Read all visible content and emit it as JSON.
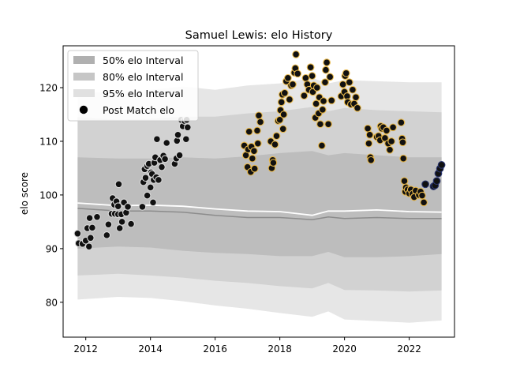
{
  "chart_data": {
    "type": "scatter",
    "title": "Samuel Lewis: elo History",
    "xlabel": "",
    "ylabel": "elo score",
    "xlim": [
      2011.3,
      2023.4
    ],
    "ylim": [
      73.5,
      127.8
    ],
    "xticks": [
      2012,
      2014,
      2016,
      2018,
      2020,
      2022
    ],
    "yticks": [
      80,
      90,
      100,
      110,
      120
    ],
    "grid": false,
    "legend_position": "top-left",
    "legend": [
      {
        "label": "50% elo Interval",
        "swatch": "band-50"
      },
      {
        "label": "80% elo Interval",
        "swatch": "band-80"
      },
      {
        "label": "95% elo Interval",
        "swatch": "band-95"
      },
      {
        "label": "Post Match elo",
        "swatch": "marker"
      }
    ],
    "colors": {
      "band_95": "#e6e6e6",
      "band_80": "#d2d2d2",
      "band_50": "#bdbdbd",
      "mean_line": "#ffffff",
      "median_line": "#8c8c8c",
      "point_fill": "#111111",
      "era_edges": [
        "#d9d9d9",
        "#e8b84a",
        "#2a3570"
      ]
    },
    "intervals": {
      "x": [
        2011.75,
        2013.0,
        2014.0,
        2015.0,
        2016.0,
        2017.0,
        2018.0,
        2019.0,
        2019.5,
        2020.0,
        2021.0,
        2022.0,
        2023.0
      ],
      "p95": [
        [
          80.5,
          119.0
        ],
        [
          81.0,
          119.2
        ],
        [
          80.8,
          119.6
        ],
        [
          80.2,
          120.2
        ],
        [
          79.4,
          119.6
        ],
        [
          78.8,
          120.4
        ],
        [
          78.0,
          120.8
        ],
        [
          77.3,
          121.8
        ],
        [
          78.3,
          120.8
        ],
        [
          76.8,
          121.4
        ],
        [
          76.5,
          121.2
        ],
        [
          76.2,
          121.0
        ],
        [
          76.6,
          121.0
        ]
      ],
      "p80": [
        [
          85.0,
          114.5
        ],
        [
          85.3,
          114.0
        ],
        [
          85.0,
          114.2
        ],
        [
          84.6,
          114.6
        ],
        [
          84.0,
          114.6
        ],
        [
          83.6,
          115.2
        ],
        [
          83.0,
          115.6
        ],
        [
          82.6,
          116.4
        ],
        [
          83.6,
          115.6
        ],
        [
          82.3,
          116.2
        ],
        [
          82.2,
          115.8
        ],
        [
          82.0,
          115.6
        ],
        [
          82.2,
          115.4
        ]
      ],
      "p50": [
        [
          90.0,
          107.0
        ],
        [
          90.4,
          106.8
        ],
        [
          90.2,
          106.8
        ],
        [
          89.6,
          107.0
        ],
        [
          89.2,
          106.8
        ],
        [
          89.0,
          107.2
        ],
        [
          88.6,
          107.8
        ],
        [
          88.6,
          108.2
        ],
        [
          89.4,
          107.4
        ],
        [
          88.4,
          107.8
        ],
        [
          88.4,
          107.4
        ],
        [
          88.6,
          107.0
        ],
        [
          89.0,
          107.0
        ]
      ],
      "mean": [
        98.5,
        98.0,
        98.1,
        97.9,
        97.4,
        97.0,
        96.9,
        96.2,
        97.0,
        97.0,
        97.2,
        96.9,
        96.8
      ],
      "median": [
        97.5,
        97.0,
        97.0,
        96.8,
        96.2,
        95.8,
        95.8,
        95.4,
        95.9,
        95.6,
        95.8,
        95.6,
        95.6
      ]
    },
    "series": [
      {
        "era": 0,
        "points": [
          [
            2011.75,
            92.8
          ],
          [
            2011.78,
            91.0
          ],
          [
            2011.9,
            90.9
          ],
          [
            2012.0,
            91.5
          ],
          [
            2012.05,
            93.8
          ],
          [
            2012.1,
            90.4
          ],
          [
            2012.12,
            95.7
          ],
          [
            2012.15,
            92.0
          ],
          [
            2012.2,
            93.9
          ],
          [
            2012.35,
            95.9
          ],
          [
            2012.65,
            92.5
          ],
          [
            2012.7,
            94.5
          ],
          [
            2012.8,
            96.5
          ],
          [
            2012.83,
            99.4
          ],
          [
            2012.88,
            98.2
          ],
          [
            2012.9,
            96.5
          ],
          [
            2012.95,
            98.8
          ],
          [
            2013.0,
            96.4
          ],
          [
            2013.0,
            97.9
          ],
          [
            2013.02,
            102.0
          ],
          [
            2013.05,
            93.8
          ],
          [
            2013.1,
            96.4
          ],
          [
            2013.12,
            95.0
          ],
          [
            2013.18,
            98.6
          ],
          [
            2013.25,
            96.7
          ],
          [
            2013.3,
            97.8
          ],
          [
            2013.4,
            94.6
          ],
          [
            2013.75,
            97.8
          ],
          [
            2013.78,
            102.4
          ],
          [
            2013.82,
            104.8
          ],
          [
            2013.85,
            103.2
          ],
          [
            2013.9,
            99.9
          ],
          [
            2013.9,
            105.4
          ],
          [
            2013.95,
            105.8
          ],
          [
            2014.0,
            101.4
          ],
          [
            2014.02,
            104.2
          ],
          [
            2014.05,
            103.9
          ],
          [
            2014.08,
            98.6
          ],
          [
            2014.1,
            102.8
          ],
          [
            2014.12,
            106.0
          ],
          [
            2014.15,
            107.0
          ],
          [
            2014.18,
            103.3
          ],
          [
            2014.2,
            110.4
          ],
          [
            2014.25,
            102.8
          ],
          [
            2014.3,
            106.5
          ],
          [
            2014.35,
            105.2
          ],
          [
            2014.4,
            107.3
          ],
          [
            2014.45,
            106.7
          ],
          [
            2014.5,
            109.7
          ],
          [
            2014.75,
            105.8
          ],
          [
            2014.8,
            106.8
          ],
          [
            2014.82,
            110.1
          ],
          [
            2014.85,
            111.2
          ],
          [
            2014.9,
            107.4
          ],
          [
            2014.95,
            114.0
          ],
          [
            2015.0,
            112.8
          ],
          [
            2015.05,
            113.8
          ],
          [
            2015.1,
            110.4
          ],
          [
            2015.12,
            114.0
          ],
          [
            2015.15,
            112.6
          ]
        ]
      },
      {
        "era": 1,
        "points": [
          [
            2016.9,
            109.2
          ],
          [
            2016.95,
            107.4
          ],
          [
            2017.0,
            105.2
          ],
          [
            2017.02,
            108.5
          ],
          [
            2017.05,
            111.8
          ],
          [
            2017.1,
            104.3
          ],
          [
            2017.12,
            109.0
          ],
          [
            2017.15,
            106.8
          ],
          [
            2017.2,
            108.2
          ],
          [
            2017.22,
            104.9
          ],
          [
            2017.3,
            112.0
          ],
          [
            2017.32,
            109.6
          ],
          [
            2017.35,
            114.8
          ],
          [
            2017.4,
            113.6
          ],
          [
            2017.72,
            110.0
          ],
          [
            2017.75,
            105.0
          ],
          [
            2017.78,
            106.5
          ],
          [
            2017.8,
            106.0
          ],
          [
            2017.85,
            109.4
          ],
          [
            2017.9,
            111.0
          ],
          [
            2017.95,
            113.8
          ],
          [
            2018.0,
            114.0
          ],
          [
            2018.02,
            115.8
          ],
          [
            2018.05,
            117.3
          ],
          [
            2018.08,
            118.7
          ],
          [
            2018.1,
            112.3
          ],
          [
            2018.12,
            115.0
          ],
          [
            2018.15,
            119.0
          ],
          [
            2018.2,
            121.2
          ],
          [
            2018.25,
            121.8
          ],
          [
            2018.3,
            117.8
          ],
          [
            2018.35,
            120.4
          ],
          [
            2018.4,
            120.6
          ],
          [
            2018.45,
            122.8
          ],
          [
            2018.48,
            123.6
          ],
          [
            2018.5,
            126.2
          ],
          [
            2018.55,
            122.6
          ],
          [
            2018.75,
            118.5
          ],
          [
            2018.8,
            121.8
          ],
          [
            2018.85,
            120.6
          ],
          [
            2018.9,
            119.6
          ],
          [
            2018.95,
            123.8
          ],
          [
            2019.0,
            122.2
          ],
          [
            2019.02,
            119.2
          ],
          [
            2019.05,
            120.4
          ],
          [
            2019.1,
            114.4
          ],
          [
            2019.12,
            117.0
          ],
          [
            2019.15,
            120.0
          ],
          [
            2019.2,
            115.2
          ],
          [
            2019.22,
            118.2
          ],
          [
            2019.25,
            113.2
          ],
          [
            2019.3,
            109.2
          ],
          [
            2019.32,
            115.9
          ],
          [
            2019.35,
            117.5
          ],
          [
            2019.4,
            121.0
          ],
          [
            2019.42,
            123.3
          ],
          [
            2019.45,
            124.7
          ],
          [
            2019.5,
            113.2
          ],
          [
            2019.55,
            122.0
          ],
          [
            2019.6,
            117.6
          ],
          [
            2019.9,
            118.4
          ],
          [
            2019.95,
            120.6
          ],
          [
            2020.0,
            119.2
          ],
          [
            2020.02,
            122.2
          ],
          [
            2020.05,
            122.7
          ],
          [
            2020.08,
            118.4
          ],
          [
            2020.1,
            117.3
          ],
          [
            2020.15,
            121.0
          ],
          [
            2020.2,
            116.9
          ],
          [
            2020.25,
            119.6
          ],
          [
            2020.3,
            117.0
          ],
          [
            2020.35,
            118.2
          ],
          [
            2020.4,
            116.2
          ],
          [
            2020.72,
            112.4
          ],
          [
            2020.75,
            109.6
          ],
          [
            2020.78,
            111.2
          ],
          [
            2020.8,
            107.0
          ],
          [
            2020.82,
            106.5
          ],
          [
            2021.0,
            110.8
          ],
          [
            2021.05,
            111.0
          ],
          [
            2021.1,
            110.2
          ],
          [
            2021.12,
            112.8
          ],
          [
            2021.15,
            112.4
          ],
          [
            2021.2,
            112.6
          ],
          [
            2021.25,
            110.6
          ],
          [
            2021.3,
            112.0
          ],
          [
            2021.35,
            109.6
          ],
          [
            2021.4,
            108.4
          ],
          [
            2021.45,
            110.0
          ],
          [
            2021.5,
            112.6
          ],
          [
            2021.75,
            113.5
          ],
          [
            2021.78,
            110.5
          ],
          [
            2021.8,
            109.8
          ],
          [
            2021.82,
            106.8
          ],
          [
            2021.85,
            102.6
          ],
          [
            2021.88,
            100.6
          ],
          [
            2021.9,
            101.4
          ],
          [
            2021.95,
            101.0
          ],
          [
            2022.0,
            100.3
          ],
          [
            2022.05,
            101.0
          ],
          [
            2022.1,
            100.2
          ],
          [
            2022.15,
            99.6
          ],
          [
            2022.2,
            100.8
          ],
          [
            2022.3,
            100.0
          ],
          [
            2022.35,
            100.6
          ],
          [
            2022.4,
            99.9
          ],
          [
            2022.45,
            98.6
          ]
        ]
      },
      {
        "era": 2,
        "points": [
          [
            2022.5,
            102.0
          ],
          [
            2022.75,
            101.6
          ],
          [
            2022.8,
            101.8
          ],
          [
            2022.85,
            102.6
          ],
          [
            2022.9,
            104.0
          ],
          [
            2022.95,
            104.9
          ],
          [
            2023.0,
            105.6
          ]
        ]
      }
    ]
  }
}
